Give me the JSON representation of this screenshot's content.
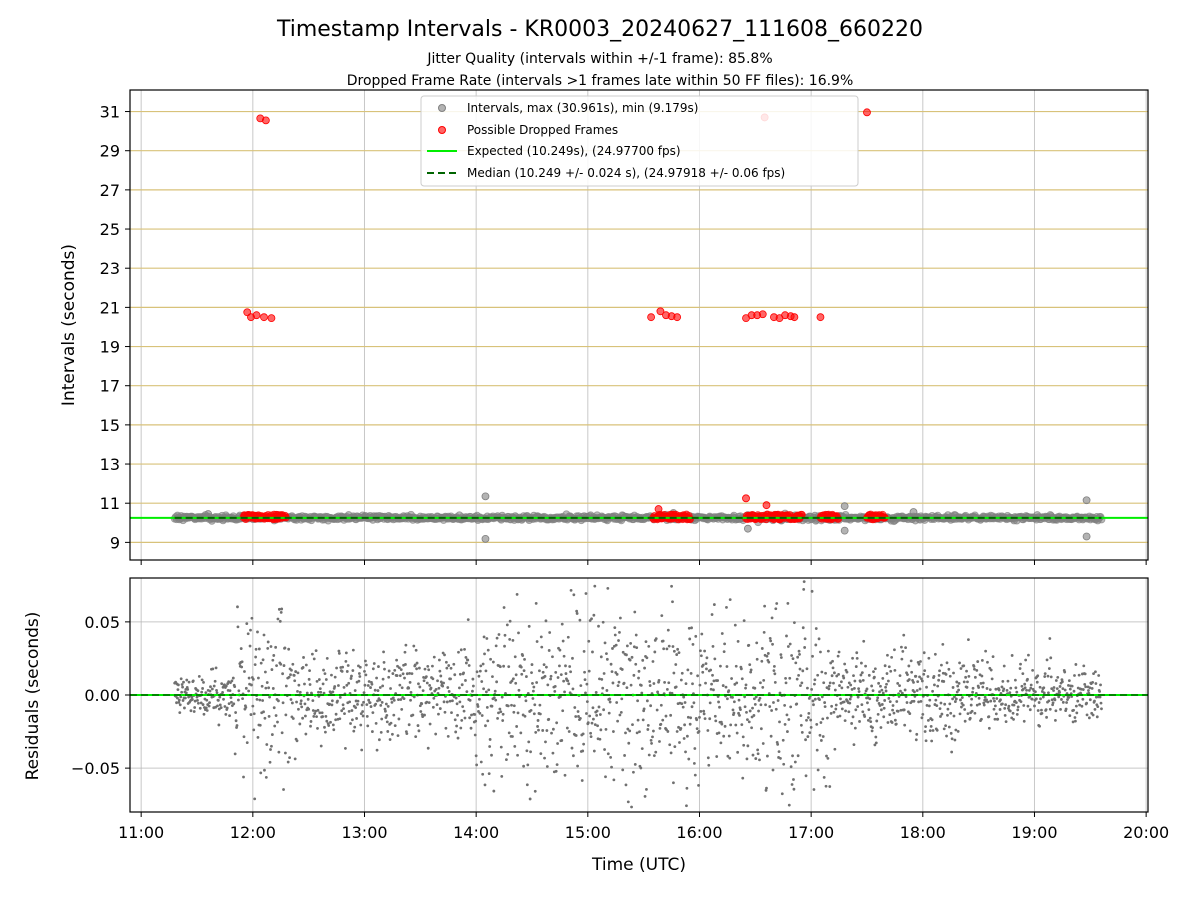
{
  "figure": {
    "title": "Timestamp Intervals - KR0003_20240627_111608_660220",
    "subtitle_1": "Jitter Quality (intervals within +/-1 frame): 85.8%",
    "subtitle_2": "Dropped Frame Rate (intervals >1 frames late within 50 FF files): 16.9%"
  },
  "colors": {
    "intervals": "#808080",
    "dropped": "#ff0000",
    "expected": "#00ee00",
    "median": "#006400",
    "hgrid_top": "#d8c27a",
    "grid": "#b0b0b0",
    "residual_points": "#707070"
  },
  "chart_data": [
    {
      "type": "scatter",
      "name": "intervals",
      "xlabel": "",
      "ylabel": "Intervals (seconds)",
      "xlim": [
        "10:54",
        "20:01"
      ],
      "ylim": [
        8.1,
        32.1
      ],
      "yticks": [
        9,
        11,
        13,
        15,
        17,
        19,
        21,
        23,
        25,
        27,
        29,
        31
      ],
      "grid": true,
      "legend_position": "top-center",
      "legend": [
        {
          "label": "Intervals, max (30.961s), min (9.179s)",
          "kind": "marker",
          "color": "#808080"
        },
        {
          "label": "Possible Dropped Frames",
          "kind": "marker",
          "color": "#ff0000"
        },
        {
          "label": "Expected (10.249s), (24.97700 fps)",
          "kind": "line",
          "color": "#00ee00"
        },
        {
          "label": "Median (10.249 +/- 0.024 s), (24.97918 +/- 0.06 fps)",
          "kind": "dashed",
          "color": "#006400"
        }
      ],
      "expected_value": 10.249,
      "median_value": 10.249,
      "series": [
        {
          "name": "Intervals",
          "x_range": [
            "11:18",
            "19:36"
          ],
          "baseline": 10.25,
          "spread": 0.06,
          "outliers": [
            {
              "x": "14:05",
              "y": 11.35
            },
            {
              "x": "14:05",
              "y": 9.18
            },
            {
              "x": "17:18",
              "y": 10.85
            },
            {
              "x": "17:18",
              "y": 9.6
            },
            {
              "x": "19:28",
              "y": 11.15
            },
            {
              "x": "19:28",
              "y": 9.3
            },
            {
              "x": "16:26",
              "y": 9.7
            },
            {
              "x": "17:55",
              "y": 10.55
            },
            {
              "x": "11:36",
              "y": 10.45
            },
            {
              "x": "15:46",
              "y": 10.5
            }
          ]
        },
        {
          "name": "Possible Dropped Frames",
          "clusters": [
            {
              "x_start": "11:55",
              "x_end": "12:18",
              "y": 10.3
            },
            {
              "x_start": "15:35",
              "x_end": "15:55",
              "y": 10.3
            },
            {
              "x_start": "16:25",
              "x_end": "16:55",
              "y": 10.3
            },
            {
              "x_start": "17:05",
              "x_end": "17:15",
              "y": 10.3
            },
            {
              "x_start": "17:30",
              "x_end": "17:40",
              "y": 10.3
            }
          ],
          "points": [
            {
              "x": "12:04",
              "y": 30.65
            },
            {
              "x": "12:07",
              "y": 30.55
            },
            {
              "x": "17:30",
              "y": 30.96
            },
            {
              "x": "16:35",
              "y": 30.7
            },
            {
              "x": "11:57",
              "y": 20.75
            },
            {
              "x": "11:59",
              "y": 20.5
            },
            {
              "x": "12:02",
              "y": 20.6
            },
            {
              "x": "12:06",
              "y": 20.5
            },
            {
              "x": "12:10",
              "y": 20.45
            },
            {
              "x": "15:34",
              "y": 20.5
            },
            {
              "x": "15:39",
              "y": 20.8
            },
            {
              "x": "15:42",
              "y": 20.6
            },
            {
              "x": "15:45",
              "y": 20.55
            },
            {
              "x": "15:48",
              "y": 20.5
            },
            {
              "x": "16:25",
              "y": 20.45
            },
            {
              "x": "16:28",
              "y": 20.6
            },
            {
              "x": "16:31",
              "y": 20.6
            },
            {
              "x": "16:34",
              "y": 20.65
            },
            {
              "x": "16:40",
              "y": 20.5
            },
            {
              "x": "16:43",
              "y": 20.45
            },
            {
              "x": "16:46",
              "y": 20.6
            },
            {
              "x": "16:49",
              "y": 20.55
            },
            {
              "x": "16:51",
              "y": 20.5
            },
            {
              "x": "17:05",
              "y": 20.5
            },
            {
              "x": "16:25",
              "y": 11.25
            },
            {
              "x": "16:36",
              "y": 10.9
            },
            {
              "x": "15:38",
              "y": 10.7
            }
          ]
        }
      ]
    },
    {
      "type": "scatter",
      "name": "residuals",
      "xlabel": "Time (UTC)",
      "ylabel": "Residuals (seconds)",
      "xlim": [
        "10:54",
        "20:01"
      ],
      "ylim": [
        -0.08,
        0.08
      ],
      "yticks": [
        -0.05,
        0.0,
        0.05
      ],
      "ytick_labels": [
        "−0.05",
        "0.00",
        "0.05"
      ],
      "xticks": [
        "11:00",
        "12:00",
        "13:00",
        "14:00",
        "15:00",
        "16:00",
        "17:00",
        "18:00",
        "19:00",
        "20:00"
      ],
      "grid": true,
      "zero_line": 0.0,
      "series": [
        {
          "name": "Residuals",
          "x_range": [
            "11:18",
            "19:36"
          ],
          "spread_segments": [
            {
              "start": "11:18",
              "end": "11:50",
              "sd": 0.008
            },
            {
              "start": "11:50",
              "end": "12:20",
              "sd": 0.032
            },
            {
              "start": "12:20",
              "end": "14:00",
              "sd": 0.016
            },
            {
              "start": "14:00",
              "end": "17:10",
              "sd": 0.03
            },
            {
              "start": "17:10",
              "end": "18:40",
              "sd": 0.016
            },
            {
              "start": "18:40",
              "end": "19:36",
              "sd": 0.01
            }
          ]
        }
      ]
    }
  ]
}
